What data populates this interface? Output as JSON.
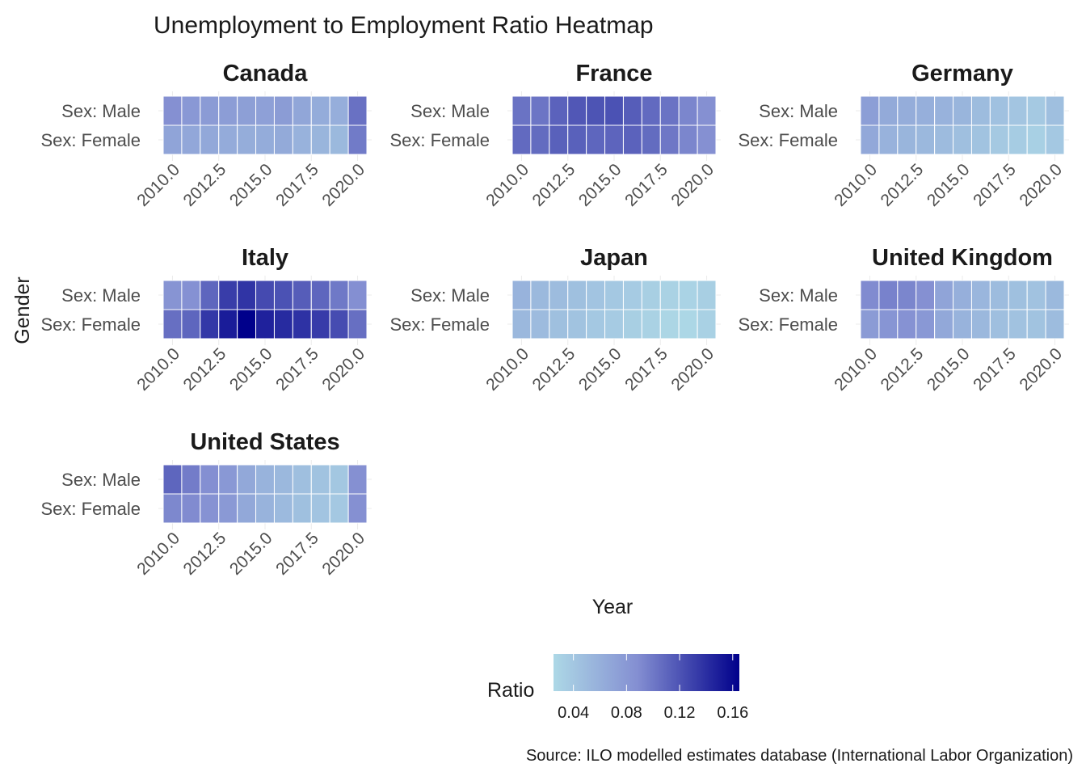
{
  "chart_data": {
    "type": "heatmap",
    "title": "Unemployment to Employment Ratio Heatmap",
    "xlabel": "Year",
    "ylabel": "Gender",
    "caption": "Source: ILO modelled estimates database (International Labor Organization)",
    "x": [
      2010,
      2011,
      2012,
      2013,
      2014,
      2015,
      2016,
      2017,
      2018,
      2019,
      2020
    ],
    "x_ticks": [
      2010,
      2012.5,
      2015,
      2017.5,
      2020
    ],
    "x_tick_labels": [
      "2010.0",
      "2012.5",
      "2015.0",
      "2017.5",
      "2020.0"
    ],
    "rows": [
      "Sex: Male",
      "Sex: Female"
    ],
    "legend": {
      "title": "Ratio",
      "ticks": [
        0.04,
        0.08,
        0.12,
        0.16
      ],
      "tick_labels": [
        "0.04",
        "0.08",
        "0.12",
        "0.16"
      ],
      "range": [
        0.025,
        0.165
      ],
      "color_low": "#add8e6",
      "color_high": "#00008b"
    },
    "facets": [
      {
        "name": "Canada",
        "male": [
          0.087,
          0.08,
          0.078,
          0.076,
          0.074,
          0.073,
          0.077,
          0.068,
          0.063,
          0.061,
          0.104
        ],
        "female": [
          0.07,
          0.067,
          0.066,
          0.064,
          0.062,
          0.063,
          0.065,
          0.058,
          0.055,
          0.052,
          0.099
        ]
      },
      {
        "name": "France",
        "male": [
          0.103,
          0.102,
          0.112,
          0.118,
          0.12,
          0.121,
          0.115,
          0.108,
          0.103,
          0.093,
          0.087
        ],
        "female": [
          0.108,
          0.107,
          0.113,
          0.113,
          0.11,
          0.111,
          0.112,
          0.107,
          0.101,
          0.093,
          0.087
        ]
      },
      {
        "name": "Germany",
        "male": [
          0.075,
          0.065,
          0.062,
          0.06,
          0.058,
          0.055,
          0.049,
          0.045,
          0.041,
          0.038,
          0.047
        ],
        "female": [
          0.066,
          0.058,
          0.055,
          0.053,
          0.05,
          0.047,
          0.043,
          0.038,
          0.035,
          0.032,
          0.039
        ]
      },
      {
        "name": "Italy",
        "male": [
          0.084,
          0.086,
          0.11,
          0.132,
          0.137,
          0.125,
          0.121,
          0.115,
          0.11,
          0.1,
          0.088
        ],
        "female": [
          0.105,
          0.11,
          0.135,
          0.15,
          0.165,
          0.147,
          0.142,
          0.138,
          0.133,
          0.124,
          0.105
        ]
      },
      {
        "name": "Japan",
        "male": [
          0.057,
          0.052,
          0.049,
          0.046,
          0.042,
          0.039,
          0.036,
          0.033,
          0.03,
          0.029,
          0.033
        ],
        "female": [
          0.053,
          0.05,
          0.046,
          0.043,
          0.039,
          0.036,
          0.033,
          0.03,
          0.027,
          0.026,
          0.031
        ]
      },
      {
        "name": "United Kingdom",
        "male": [
          0.09,
          0.095,
          0.093,
          0.087,
          0.07,
          0.06,
          0.054,
          0.049,
          0.046,
          0.044,
          0.052
        ],
        "female": [
          0.078,
          0.083,
          0.085,
          0.08,
          0.066,
          0.057,
          0.053,
          0.047,
          0.044,
          0.043,
          0.049
        ]
      },
      {
        "name": "United States",
        "male": [
          0.11,
          0.098,
          0.088,
          0.08,
          0.066,
          0.057,
          0.053,
          0.047,
          0.043,
          0.04,
          0.087
        ],
        "female": [
          0.092,
          0.09,
          0.085,
          0.079,
          0.066,
          0.057,
          0.051,
          0.046,
          0.042,
          0.039,
          0.087
        ]
      }
    ]
  }
}
